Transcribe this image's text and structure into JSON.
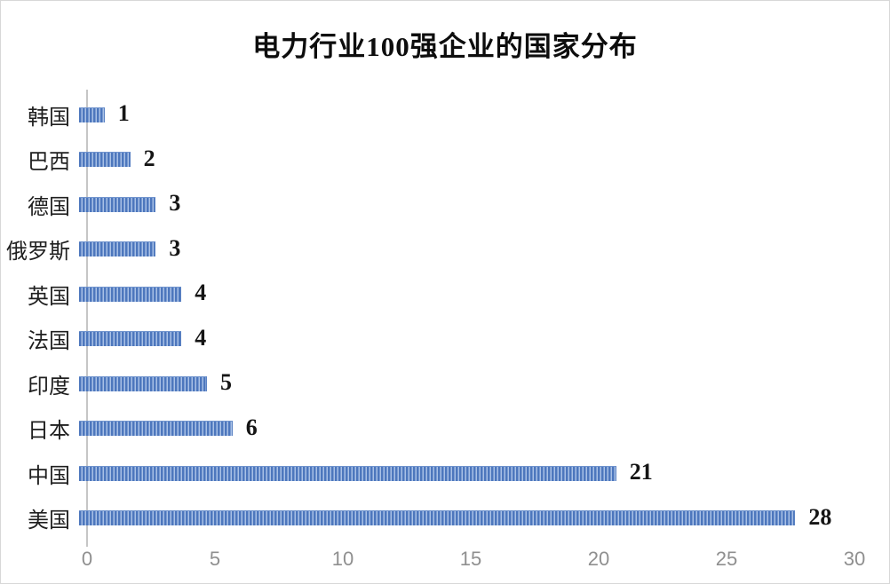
{
  "chart_data": {
    "type": "bar",
    "orientation": "horizontal",
    "title": "电力行业100强企业的国家分布",
    "categories": [
      "韩国",
      "巴西",
      "德国",
      "俄罗斯",
      "英国",
      "法国",
      "印度",
      "日本",
      "中国",
      "美国"
    ],
    "values": [
      1,
      2,
      3,
      3,
      4,
      4,
      5,
      6,
      21,
      28
    ],
    "data_labels_shown": true,
    "xlabel": "",
    "ylabel": "",
    "xlim": [
      0,
      30
    ],
    "x_ticks": [
      0,
      5,
      10,
      15,
      20,
      25,
      30
    ],
    "grid": false,
    "legend": "none",
    "colors": {
      "bar_primary": "#4d77bd",
      "bar_stripe": "#a9c1e6",
      "axis_spine": "#c6c6c6",
      "tick_label": "#8f8f8f",
      "title_text": "#0d0d0d",
      "category_text": "#1f1f1f",
      "value_text": "#151515",
      "background": "#ffffff",
      "frame_border": "#d8d8d8"
    }
  }
}
